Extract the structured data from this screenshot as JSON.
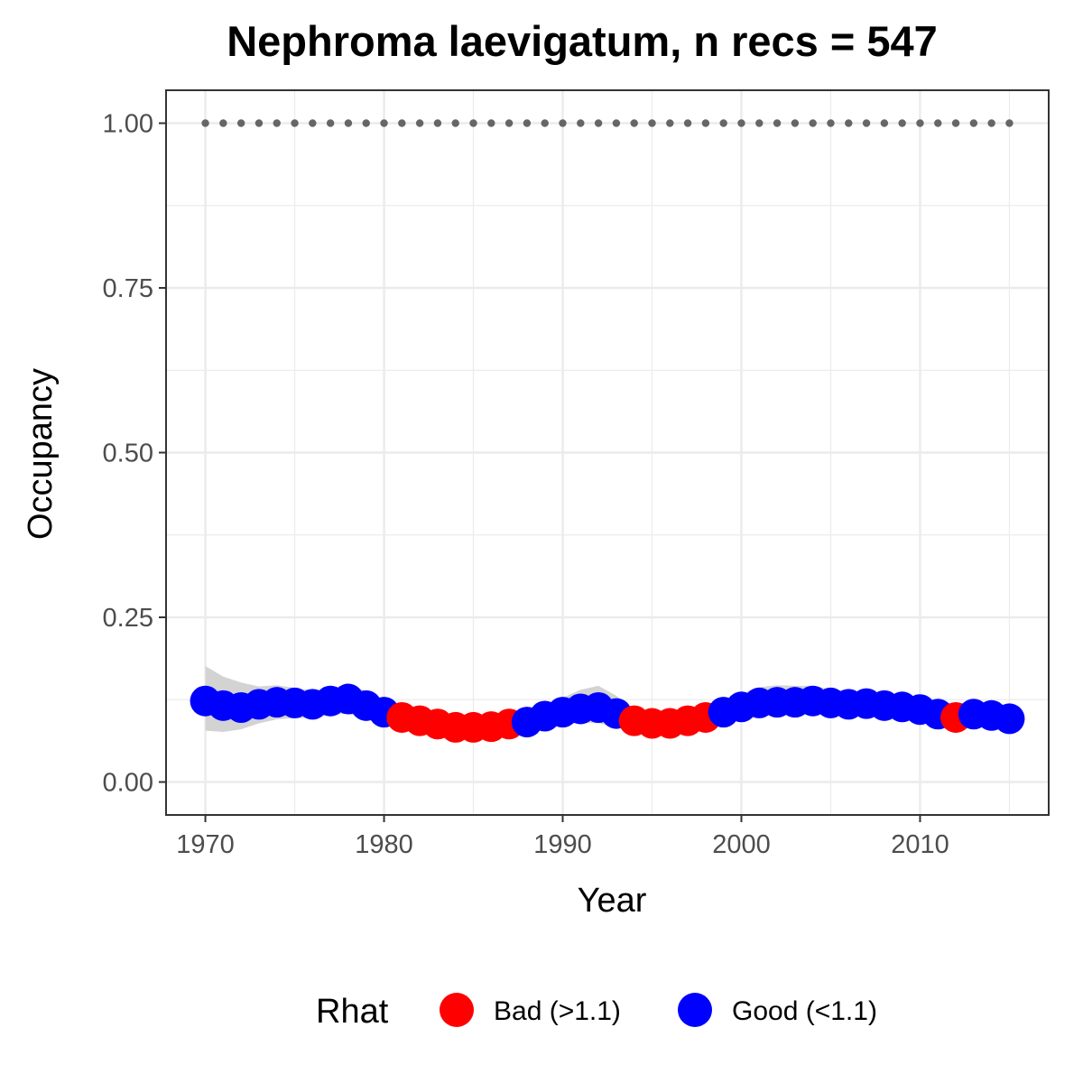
{
  "chart_data": {
    "type": "scatter",
    "title": "Nephroma laevigatum, n recs = 547",
    "xlabel": "Year",
    "ylabel": "Occupancy",
    "xlim": [
      1967.8,
      2017.2
    ],
    "ylim": [
      -0.05,
      1.05
    ],
    "x_ticks": [
      1970,
      1980,
      1990,
      2000,
      2010
    ],
    "x_tick_labels": [
      "1970",
      "1980",
      "1990",
      "2000",
      "2010"
    ],
    "y_ticks": [
      0,
      0.25,
      0.5,
      0.75,
      1
    ],
    "y_tick_labels": [
      "0.00",
      "0.25",
      "0.50",
      "0.75",
      "1.00"
    ],
    "grid": true,
    "legend": {
      "title": "Rhat",
      "position": "bottom",
      "entries": [
        {
          "label": "Bad (>1.1)",
          "color": "#ff0000"
        },
        {
          "label": "Good (<1.1)",
          "color": "#0000ff"
        }
      ]
    },
    "colors": {
      "bad": "#ff0000",
      "good": "#0000ff",
      "naive": "#666666",
      "ribbon": "#d3d3d3"
    },
    "x": [
      1970,
      1971,
      1972,
      1973,
      1974,
      1975,
      1976,
      1977,
      1978,
      1979,
      1980,
      1981,
      1982,
      1983,
      1984,
      1985,
      1986,
      1987,
      1988,
      1989,
      1990,
      1991,
      1992,
      1993,
      1994,
      1995,
      1996,
      1997,
      1998,
      1999,
      2000,
      2001,
      2002,
      2003,
      2004,
      2005,
      2006,
      2007,
      2008,
      2009,
      2010,
      2011,
      2012,
      2013,
      2014,
      2015
    ],
    "series": [
      {
        "name": "Bad (>1.1)",
        "role": "occupancy-bad",
        "x": [
          1981,
          1982,
          1983,
          1984,
          1985,
          1986,
          1987,
          1994,
          1995,
          1996,
          1997,
          1998,
          2012
        ],
        "values": [
          0.098,
          0.093,
          0.088,
          0.083,
          0.083,
          0.084,
          0.088,
          0.093,
          0.089,
          0.089,
          0.093,
          0.098,
          0.098
        ]
      },
      {
        "name": "Good (<1.1)",
        "role": "occupancy-good",
        "x": [
          1970,
          1971,
          1972,
          1973,
          1974,
          1975,
          1976,
          1977,
          1978,
          1979,
          1980,
          1988,
          1989,
          1990,
          1991,
          1992,
          1993,
          1999,
          2000,
          2001,
          2002,
          2003,
          2004,
          2005,
          2006,
          2007,
          2008,
          2009,
          2010,
          2011,
          2013,
          2014,
          2015
        ],
        "values": [
          0.123,
          0.116,
          0.113,
          0.118,
          0.121,
          0.12,
          0.118,
          0.123,
          0.126,
          0.116,
          0.106,
          0.091,
          0.1,
          0.106,
          0.111,
          0.113,
          0.104,
          0.106,
          0.114,
          0.12,
          0.121,
          0.121,
          0.123,
          0.12,
          0.118,
          0.119,
          0.116,
          0.114,
          0.11,
          0.103,
          0.103,
          0.101,
          0.096
        ]
      },
      {
        "role": "naive-occupancy",
        "x": [
          1970,
          1971,
          1972,
          1973,
          1974,
          1975,
          1976,
          1977,
          1978,
          1979,
          1980,
          1981,
          1982,
          1983,
          1984,
          1985,
          1986,
          1987,
          1988,
          1989,
          1990,
          1991,
          1992,
          1993,
          1994,
          1995,
          1996,
          1997,
          1998,
          1999,
          2000,
          2001,
          2002,
          2003,
          2004,
          2005,
          2006,
          2007,
          2008,
          2009,
          2010,
          2011,
          2012,
          2013,
          2014,
          2015
        ],
        "values": [
          1,
          1,
          1,
          1,
          1,
          1,
          1,
          1,
          1,
          1,
          1,
          1,
          1,
          1,
          1,
          1,
          1,
          1,
          1,
          1,
          1,
          1,
          1,
          1,
          1,
          1,
          1,
          1,
          1,
          1,
          1,
          1,
          1,
          1,
          1,
          1,
          1,
          1,
          1,
          1,
          1,
          1,
          1,
          1,
          1,
          1
        ]
      }
    ],
    "ribbon": {
      "x": [
        1970,
        1971,
        1972,
        1973,
        1974,
        1975,
        1976,
        1977,
        1978,
        1979,
        1980,
        1981,
        1982,
        1983,
        1984,
        1985,
        1986,
        1987,
        1988,
        1989,
        1990,
        1991,
        1992,
        1993,
        1994,
        1995,
        1996,
        1997,
        1998,
        1999,
        2000,
        2001,
        2002,
        2003,
        2004,
        2005,
        2006,
        2007,
        2008,
        2009,
        2010,
        2011,
        2012,
        2013,
        2014,
        2015
      ],
      "lower": [
        0.078,
        0.076,
        0.08,
        0.089,
        0.095,
        0.097,
        0.097,
        0.102,
        0.104,
        0.095,
        0.088,
        0.081,
        0.076,
        0.071,
        0.069,
        0.069,
        0.07,
        0.072,
        0.076,
        0.082,
        0.087,
        0.09,
        0.089,
        0.084,
        0.078,
        0.075,
        0.075,
        0.077,
        0.08,
        0.088,
        0.097,
        0.101,
        0.103,
        0.104,
        0.105,
        0.104,
        0.103,
        0.102,
        0.1,
        0.098,
        0.095,
        0.09,
        0.087,
        0.085,
        0.084,
        0.082
      ],
      "upper": [
        0.176,
        0.16,
        0.151,
        0.145,
        0.147,
        0.143,
        0.139,
        0.142,
        0.148,
        0.138,
        0.124,
        0.113,
        0.106,
        0.101,
        0.097,
        0.097,
        0.098,
        0.101,
        0.107,
        0.118,
        0.128,
        0.14,
        0.146,
        0.131,
        0.111,
        0.105,
        0.105,
        0.108,
        0.115,
        0.125,
        0.134,
        0.144,
        0.147,
        0.146,
        0.146,
        0.141,
        0.138,
        0.137,
        0.135,
        0.132,
        0.128,
        0.121,
        0.118,
        0.117,
        0.117,
        0.112
      ]
    }
  }
}
